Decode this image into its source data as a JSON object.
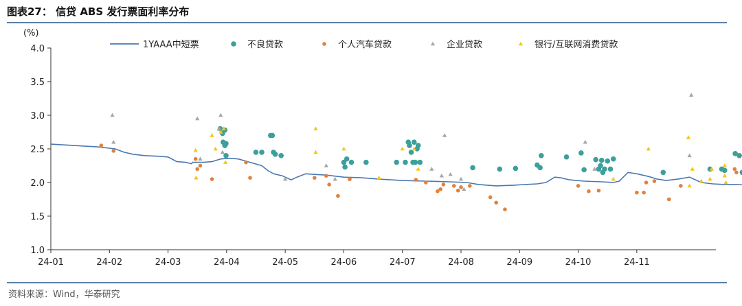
{
  "chart_data": {
    "type": "scatter",
    "title": "图表27：  信贷 ABS 发行票面利率分布",
    "ylabel": "(%)",
    "ylim": [
      1.0,
      4.0
    ],
    "yticks": [
      "1.0",
      "1.5",
      "2.0",
      "2.5",
      "3.0",
      "3.5",
      "4.0"
    ],
    "xlim": [
      0,
      11.35
    ],
    "xticks": [
      "24-01",
      "24-02",
      "24-03",
      "24-04",
      "24-05",
      "24-06",
      "24-07",
      "24-08",
      "24-09",
      "24-10",
      "24-11"
    ],
    "legend_position": "top",
    "series": [
      {
        "name": "1YAAA中短票",
        "kind": "line",
        "color": "#4a78b0",
        "points": [
          [
            0.0,
            2.57
          ],
          [
            0.4,
            2.55
          ],
          [
            0.8,
            2.53
          ],
          [
            1.1,
            2.5
          ],
          [
            1.25,
            2.45
          ],
          [
            1.4,
            2.42
          ],
          [
            1.6,
            2.4
          ],
          [
            1.85,
            2.39
          ],
          [
            2.0,
            2.38
          ],
          [
            2.15,
            2.31
          ],
          [
            2.3,
            2.3
          ],
          [
            2.4,
            2.28
          ],
          [
            2.42,
            2.3
          ],
          [
            2.6,
            2.3
          ],
          [
            2.75,
            2.31
          ],
          [
            2.9,
            2.35
          ],
          [
            3.05,
            2.36
          ],
          [
            3.2,
            2.35
          ],
          [
            3.4,
            2.3
          ],
          [
            3.6,
            2.25
          ],
          [
            3.7,
            2.18
          ],
          [
            3.8,
            2.13
          ],
          [
            3.95,
            2.1
          ],
          [
            4.1,
            2.04
          ],
          [
            4.2,
            2.08
          ],
          [
            4.35,
            2.13
          ],
          [
            4.5,
            2.12
          ],
          [
            4.7,
            2.11
          ],
          [
            5.0,
            2.08
          ],
          [
            5.3,
            2.07
          ],
          [
            5.6,
            2.05
          ],
          [
            5.8,
            2.04
          ],
          [
            6.0,
            2.03
          ],
          [
            6.4,
            2.02
          ],
          [
            6.8,
            2.01
          ],
          [
            7.1,
            2.0
          ],
          [
            7.3,
            1.97
          ],
          [
            7.6,
            1.95
          ],
          [
            7.9,
            1.96
          ],
          [
            8.1,
            1.97
          ],
          [
            8.3,
            1.98
          ],
          [
            8.45,
            2.0
          ],
          [
            8.6,
            2.08
          ],
          [
            8.7,
            2.07
          ],
          [
            8.85,
            2.04
          ],
          [
            9.1,
            2.02
          ],
          [
            9.4,
            2.01
          ],
          [
            9.6,
            2.0
          ],
          [
            9.7,
            2.02
          ],
          [
            9.85,
            2.15
          ],
          [
            10.0,
            2.13
          ],
          [
            10.2,
            2.09
          ],
          [
            10.35,
            2.05
          ],
          [
            10.5,
            2.03
          ],
          [
            10.7,
            2.05
          ],
          [
            10.9,
            2.08
          ],
          [
            11.1,
            2.0
          ],
          [
            11.3,
            1.98
          ],
          [
            11.5,
            1.97
          ],
          [
            11.7,
            1.97
          ],
          [
            11.9,
            1.96
          ]
        ]
      },
      {
        "name": "不良贷款",
        "kind": "dot",
        "color": "#3d9f9b",
        "points": [
          [
            2.89,
            2.8
          ],
          [
            2.93,
            2.73
          ],
          [
            2.94,
            2.6
          ],
          [
            2.97,
            2.78
          ],
          [
            2.97,
            2.55
          ],
          [
            2.99,
            2.4
          ],
          [
            2.99,
            2.58
          ],
          [
            3.5,
            2.45
          ],
          [
            3.6,
            2.45
          ],
          [
            3.75,
            2.7
          ],
          [
            3.78,
            2.7
          ],
          [
            3.8,
            2.45
          ],
          [
            3.83,
            2.42
          ],
          [
            3.93,
            2.4
          ],
          [
            5.0,
            2.3
          ],
          [
            5.02,
            2.23
          ],
          [
            5.05,
            2.35
          ],
          [
            5.13,
            2.3
          ],
          [
            5.38,
            2.3
          ],
          [
            5.9,
            2.3
          ],
          [
            6.05,
            2.3
          ],
          [
            6.1,
            2.6
          ],
          [
            6.12,
            2.55
          ],
          [
            6.15,
            2.45
          ],
          [
            6.18,
            2.3
          ],
          [
            6.2,
            2.6
          ],
          [
            6.22,
            2.3
          ],
          [
            6.25,
            2.5
          ],
          [
            6.27,
            2.55
          ],
          [
            6.3,
            2.3
          ],
          [
            7.2,
            2.22
          ],
          [
            7.66,
            2.2
          ],
          [
            7.93,
            2.21
          ],
          [
            8.3,
            2.26
          ],
          [
            8.35,
            2.22
          ],
          [
            8.37,
            2.4
          ],
          [
            8.8,
            2.38
          ],
          [
            9.05,
            2.44
          ],
          [
            9.1,
            2.19
          ],
          [
            9.3,
            2.34
          ],
          [
            9.35,
            2.2
          ],
          [
            9.38,
            2.25
          ],
          [
            9.4,
            2.33
          ],
          [
            9.42,
            2.15
          ],
          [
            9.45,
            2.2
          ],
          [
            9.5,
            2.32
          ],
          [
            9.55,
            2.2
          ],
          [
            9.6,
            2.35
          ],
          [
            10.45,
            2.15
          ],
          [
            11.25,
            2.2
          ],
          [
            11.45,
            2.2
          ],
          [
            11.5,
            2.18
          ],
          [
            11.68,
            2.43
          ],
          [
            11.75,
            2.4
          ],
          [
            11.8,
            2.15
          ]
        ]
      },
      {
        "name": "个人汽车贷款",
        "kind": "dot",
        "color": "#e0823c",
        "points": [
          [
            0.86,
            2.55
          ],
          [
            1.07,
            2.47
          ],
          [
            2.47,
            2.35
          ],
          [
            2.5,
            2.2
          ],
          [
            2.55,
            2.25
          ],
          [
            2.75,
            2.05
          ],
          [
            3.33,
            2.3
          ],
          [
            3.4,
            2.07
          ],
          [
            4.5,
            2.07
          ],
          [
            4.7,
            2.1
          ],
          [
            4.75,
            1.97
          ],
          [
            4.9,
            1.8
          ],
          [
            5.1,
            2.05
          ],
          [
            6.23,
            2.04
          ],
          [
            6.4,
            2.0
          ],
          [
            6.6,
            1.87
          ],
          [
            6.65,
            1.9
          ],
          [
            6.7,
            1.97
          ],
          [
            6.88,
            1.95
          ],
          [
            6.95,
            1.88
          ],
          [
            7.0,
            1.93
          ],
          [
            7.15,
            1.95
          ],
          [
            7.5,
            1.78
          ],
          [
            7.6,
            1.7
          ],
          [
            7.75,
            1.6
          ],
          [
            9.0,
            1.95
          ],
          [
            9.18,
            1.87
          ],
          [
            9.35,
            1.88
          ],
          [
            10.0,
            1.85
          ],
          [
            10.12,
            1.85
          ],
          [
            10.16,
            2.0
          ],
          [
            10.3,
            2.02
          ],
          [
            10.55,
            1.75
          ],
          [
            10.75,
            1.95
          ],
          [
            11.67,
            2.2
          ],
          [
            11.7,
            2.15
          ]
        ]
      },
      {
        "name": "企业贷款",
        "kind": "triangle",
        "color": "#a6a6a6",
        "points": [
          [
            1.05,
            3.0
          ],
          [
            1.07,
            2.6
          ],
          [
            2.5,
            2.95
          ],
          [
            2.55,
            2.35
          ],
          [
            2.87,
            2.8
          ],
          [
            2.9,
            3.0
          ],
          [
            2.93,
            2.45
          ],
          [
            4.0,
            2.05
          ],
          [
            4.7,
            2.25
          ],
          [
            4.85,
            2.05
          ],
          [
            6.5,
            2.2
          ],
          [
            6.67,
            2.1
          ],
          [
            6.72,
            2.7
          ],
          [
            6.82,
            2.12
          ],
          [
            7.0,
            2.05
          ],
          [
            7.05,
            1.9
          ],
          [
            9.12,
            2.6
          ],
          [
            9.28,
            2.2
          ],
          [
            10.9,
            2.4
          ],
          [
            10.93,
            3.3
          ]
        ]
      },
      {
        "name": "银行/互联网消费贷款",
        "kind": "triangle",
        "color": "#f5c518",
        "points": [
          [
            2.47,
            2.48
          ],
          [
            2.48,
            2.07
          ],
          [
            2.75,
            2.7
          ],
          [
            2.81,
            2.5
          ],
          [
            2.9,
            2.75
          ],
          [
            2.95,
            2.8
          ],
          [
            2.98,
            2.3
          ],
          [
            4.52,
            2.8
          ],
          [
            4.52,
            2.45
          ],
          [
            5.0,
            2.5
          ],
          [
            5.6,
            2.07
          ],
          [
            6.0,
            2.5
          ],
          [
            6.2,
            2.5
          ],
          [
            6.27,
            2.2
          ],
          [
            9.6,
            2.05
          ],
          [
            10.2,
            2.5
          ],
          [
            10.88,
            2.67
          ],
          [
            10.9,
            1.95
          ],
          [
            10.95,
            2.2
          ],
          [
            11.1,
            2.02
          ],
          [
            11.25,
            2.05
          ],
          [
            11.28,
            2.2
          ],
          [
            11.5,
            2.25
          ],
          [
            11.5,
            2.1
          ],
          [
            11.52,
            2.0
          ]
        ]
      }
    ]
  },
  "source_note": "资料来源：Wind，华泰研究"
}
